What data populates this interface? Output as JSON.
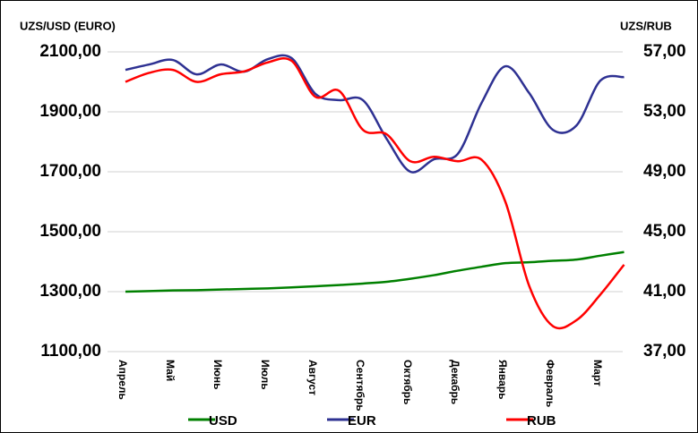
{
  "chart_data": {
    "type": "line",
    "y_label": "UZS/USD (EURO)",
    "y2_label": "UZS/RUB",
    "categories": [
      "Апрель",
      "Май",
      "Июнь",
      "Июль",
      "Август",
      "Сентябрь",
      "Октябрь",
      "Декабрь",
      "Январь",
      "Февраль",
      "Март"
    ],
    "x": [
      0,
      0.5,
      1,
      1.5,
      2,
      2.5,
      3,
      3.5,
      4,
      4.5,
      5,
      5.5,
      6,
      6.5,
      7,
      7.5,
      8,
      8.5,
      9,
      9.5,
      10,
      10.5
    ],
    "series": [
      {
        "name": "USD",
        "color": "#008000",
        "values": [
          1300,
          1302,
          1304,
          1305,
          1307,
          1309,
          1311,
          1314,
          1318,
          1322,
          1327,
          1333,
          1343,
          1355,
          1370,
          1383,
          1395,
          1398,
          1403,
          1407,
          1420,
          1432
        ]
      },
      {
        "name": "EUR",
        "color": "#2e3192",
        "values": [
          2040,
          2058,
          2073,
          2025,
          2058,
          2034,
          2076,
          2079,
          1960,
          1939,
          1939,
          1810,
          1700,
          1742,
          1760,
          1930,
          2052,
          1963,
          1840,
          1855,
          2004,
          2016
        ]
      },
      {
        "name": "RUB",
        "color": "#ff0000",
        "axis": "y2",
        "values": [
          55.0,
          55.6,
          55.8,
          55.0,
          55.5,
          55.7,
          56.3,
          56.4,
          54.0,
          54.4,
          51.8,
          51.5,
          49.7,
          50.0,
          49.7,
          49.8,
          47.0,
          41.4,
          38.7,
          39.1,
          40.8,
          42.8
        ]
      }
    ],
    "ylim": [
      1100,
      2100
    ],
    "yticks": [
      {
        "value": 1100,
        "label": "1100,00"
      },
      {
        "value": 1300,
        "label": "1300,00"
      },
      {
        "value": 1500,
        "label": "1500,00"
      },
      {
        "value": 1700,
        "label": "1700,00"
      },
      {
        "value": 1900,
        "label": "1900,00"
      },
      {
        "value": 2100,
        "label": "2100,00"
      }
    ],
    "y2lim": [
      37,
      57
    ],
    "y2ticks": [
      {
        "value": 37,
        "label": "37,00"
      },
      {
        "value": 41,
        "label": "41,00"
      },
      {
        "value": 45,
        "label": "45,00"
      },
      {
        "value": 49,
        "label": "49,00"
      },
      {
        "value": 53,
        "label": "53,00"
      },
      {
        "value": 57,
        "label": "57,00"
      }
    ],
    "grid": true
  }
}
